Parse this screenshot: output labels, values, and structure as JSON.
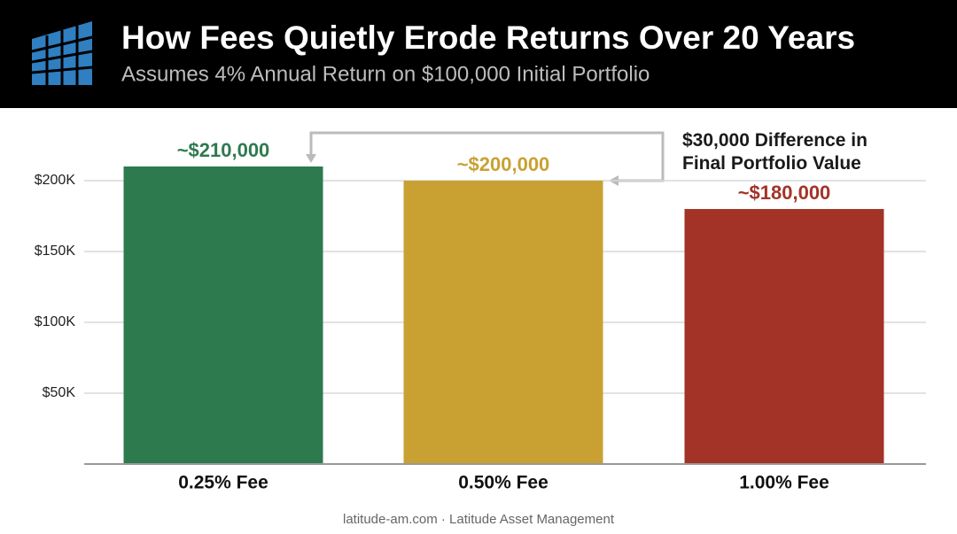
{
  "chart_data": {
    "type": "bar",
    "title": "How Fees Quietly Erode Returns Over 20 Years",
    "subtitle": "Assumes 4% Annual Return on $100,000 Initial Portfolio",
    "categories": [
      "0.25% Fee",
      "0.50% Fee",
      "1.00% Fee"
    ],
    "values": [
      210000,
      200000,
      180000
    ],
    "value_labels": [
      "~$210,000",
      "~$200,000",
      "~$180,000"
    ],
    "colors": [
      "#2e7a4f",
      "#c9a132",
      "#a33327"
    ],
    "ylim": [
      0,
      220000
    ],
    "yticks": [
      {
        "value": 50000,
        "label": "$50K"
      },
      {
        "value": 100000,
        "label": "$100K"
      },
      {
        "value": 150000,
        "label": "$150K"
      },
      {
        "value": 200000,
        "label": "$200K"
      }
    ],
    "grid": true,
    "annotation": "$30,000 Difference in Final Portfolio Value",
    "footer": "latitude-am.com · Latitude Asset Management"
  }
}
